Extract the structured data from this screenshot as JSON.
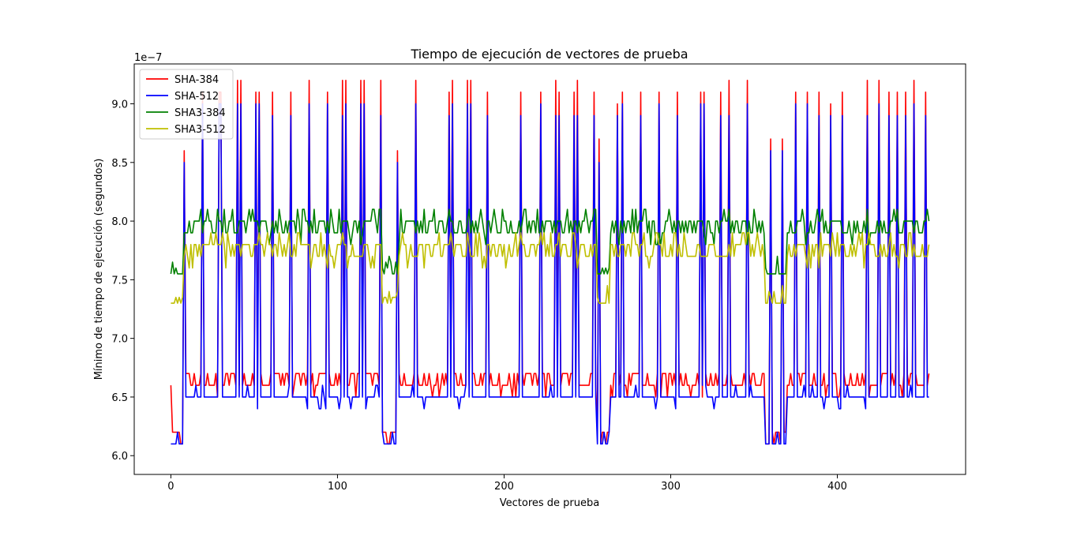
{
  "chart_data": {
    "type": "line",
    "title": "Tiempo de ejecución de vectores de prueba",
    "xlabel": "Vectores de prueba",
    "ylabel": "Mínimo de tiempo de ejecución (segundos)",
    "y_offset_label": "1e−7",
    "xlim": [
      -22,
      477
    ],
    "ylim": [
      5.84,
      9.34
    ],
    "x_ticks": [
      0,
      100,
      200,
      300,
      400
    ],
    "x_tick_labels": [
      "0",
      "100",
      "200",
      "300",
      "400"
    ],
    "y_ticks": [
      6.0,
      6.5,
      7.0,
      7.5,
      8.0,
      8.5,
      9.0
    ],
    "y_tick_labels": [
      "6.0",
      "6.5",
      "7.0",
      "7.5",
      "8.0",
      "8.5",
      "9.0"
    ],
    "grid": false,
    "legend_position": "top-left",
    "x_range": [
      0,
      455
    ],
    "series": [
      {
        "name": "SHA-384",
        "color": "#ff0000",
        "profile": "low",
        "base_values": [
          6.6,
          6.7
        ],
        "sparse_peaks": [
          [
            40,
            9.2
          ],
          [
            42,
            9.2
          ],
          [
            51,
            9.1
          ],
          [
            53,
            9.1
          ],
          [
            61,
            9.1
          ],
          [
            72,
            9.1
          ],
          [
            83,
            9.2
          ],
          [
            94,
            9.1
          ],
          [
            103,
            9.2
          ],
          [
            105,
            9.2
          ],
          [
            114,
            9.2
          ],
          [
            116,
            9.2
          ],
          [
            126,
            9.2
          ],
          [
            136,
            8.6
          ],
          [
            147,
            9.2
          ],
          [
            167,
            9.1
          ],
          [
            169,
            9.2
          ],
          [
            178,
            9.2
          ],
          [
            180,
            9.2
          ],
          [
            190,
            9.1
          ],
          [
            210,
            9.1
          ],
          [
            222,
            9.1
          ],
          [
            231,
            9.2
          ],
          [
            233,
            9.1
          ],
          [
            242,
            9.1
          ],
          [
            244,
            9.2
          ],
          [
            254,
            9.1
          ],
          [
            257,
            8.7
          ],
          [
            268,
            9.0
          ],
          [
            271,
            9.1
          ],
          [
            282,
            9.1
          ],
          [
            293,
            9.1
          ],
          [
            304,
            9.1
          ],
          [
            318,
            9.1
          ],
          [
            320,
            9.1
          ],
          [
            330,
            9.1
          ],
          [
            335,
            9.2
          ],
          [
            346,
            9.2
          ],
          [
            360,
            8.7
          ],
          [
            367,
            8.7
          ],
          [
            375,
            9.1
          ],
          [
            382,
            9.1
          ],
          [
            389,
            9.1
          ],
          [
            396,
            9.0
          ],
          [
            403,
            9.1
          ],
          [
            418,
            9.2
          ],
          [
            425,
            9.2
          ],
          [
            431,
            9.1
          ],
          [
            436,
            9.1
          ],
          [
            441,
            9.1
          ],
          [
            446,
            9.2
          ],
          [
            453,
            9.1
          ]
        ]
      },
      {
        "name": "SHA-512",
        "color": "#0000ff",
        "profile": "low",
        "base_values": [
          6.5,
          6.5
        ],
        "sparse_peaks": [
          [
            40,
            9.0
          ],
          [
            42,
            9.0
          ],
          [
            51,
            9.0
          ],
          [
            53,
            9.0
          ],
          [
            61,
            8.9
          ],
          [
            72,
            8.9
          ],
          [
            83,
            9.0
          ],
          [
            94,
            9.0
          ],
          [
            103,
            8.9
          ],
          [
            105,
            9.0
          ],
          [
            114,
            9.0
          ],
          [
            116,
            9.0
          ],
          [
            126,
            8.9
          ],
          [
            136,
            8.5
          ],
          [
            147,
            9.0
          ],
          [
            167,
            8.9
          ],
          [
            169,
            9.0
          ],
          [
            178,
            9.0
          ],
          [
            180,
            9.0
          ],
          [
            190,
            8.9
          ],
          [
            210,
            8.9
          ],
          [
            222,
            9.0
          ],
          [
            231,
            8.9
          ],
          [
            233,
            8.9
          ],
          [
            242,
            8.9
          ],
          [
            244,
            8.9
          ],
          [
            254,
            8.9
          ],
          [
            257,
            8.5
          ],
          [
            268,
            8.9
          ],
          [
            271,
            9.0
          ],
          [
            282,
            8.9
          ],
          [
            293,
            9.0
          ],
          [
            304,
            8.9
          ],
          [
            318,
            9.0
          ],
          [
            320,
            9.0
          ],
          [
            330,
            8.9
          ],
          [
            335,
            8.9
          ],
          [
            346,
            9.0
          ],
          [
            360,
            8.6
          ],
          [
            367,
            8.6
          ],
          [
            375,
            9.0
          ],
          [
            382,
            9.0
          ],
          [
            389,
            8.9
          ],
          [
            396,
            8.9
          ],
          [
            403,
            8.9
          ],
          [
            418,
            8.9
          ],
          [
            425,
            9.0
          ],
          [
            431,
            8.9
          ],
          [
            436,
            8.9
          ],
          [
            441,
            8.9
          ],
          [
            446,
            9.0
          ],
          [
            453,
            8.9
          ]
        ]
      },
      {
        "name": "SHA3-384",
        "color": "#008000",
        "profile": "high",
        "base_values": [
          7.9,
          8.0
        ]
      },
      {
        "name": "SHA3-512",
        "color": "#bfbf00",
        "profile": "high",
        "base_values": [
          7.7,
          7.8
        ]
      }
    ]
  }
}
